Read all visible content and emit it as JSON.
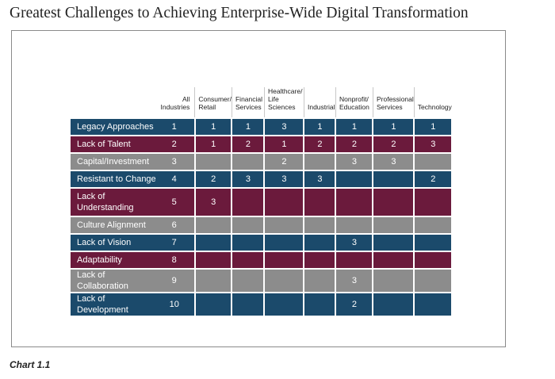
{
  "title": "Greatest Challenges to Achieving Enterprise-Wide Digital Transformation",
  "caption": "Chart 1.1",
  "colors": {
    "blue": "#1b4a6b",
    "maroon": "#6b1a3c",
    "gray": "#8c8c8c"
  },
  "chart_data": {
    "type": "table",
    "columns": [
      "All Industries",
      "Consumer/ Retail",
      "Financial Services",
      "Healthcare/ Life Sciences",
      "Industrial",
      "Nonprofit/ Education",
      "Professional Services",
      "Technology"
    ],
    "rows": [
      {
        "label": "Legacy Approaches",
        "color": "blue",
        "values": [
          "1",
          "1",
          "1",
          "3",
          "1",
          "1",
          "1",
          "1"
        ]
      },
      {
        "label": "Lack of Talent",
        "color": "maroon",
        "values": [
          "2",
          "1",
          "2",
          "1",
          "2",
          "2",
          "2",
          "3"
        ]
      },
      {
        "label": "Capital/Investment",
        "color": "gray",
        "values": [
          "3",
          "",
          "",
          "2",
          "",
          "3",
          "3",
          ""
        ]
      },
      {
        "label": "Resistant to Change",
        "color": "blue",
        "values": [
          "4",
          "2",
          "3",
          "3",
          "3",
          "",
          "",
          "2"
        ]
      },
      {
        "label": "Lack of Understanding",
        "color": "maroon",
        "values": [
          "5",
          "3",
          "",
          "",
          "",
          "",
          "",
          ""
        ]
      },
      {
        "label": "Culture Alignment",
        "color": "gray",
        "values": [
          "6",
          "",
          "",
          "",
          "",
          "",
          "",
          ""
        ]
      },
      {
        "label": "Lack of Vision",
        "color": "blue",
        "values": [
          "7",
          "",
          "",
          "",
          "",
          "3",
          "",
          ""
        ]
      },
      {
        "label": "Adaptability",
        "color": "maroon",
        "values": [
          "8",
          "",
          "",
          "",
          "",
          "",
          "",
          ""
        ]
      },
      {
        "label": "Lack of Collaboration",
        "color": "gray",
        "values": [
          "9",
          "",
          "",
          "",
          "",
          "3",
          "",
          ""
        ]
      },
      {
        "label": "Lack of Development",
        "color": "blue",
        "values": [
          "10",
          "",
          "",
          "",
          "",
          "2",
          "",
          ""
        ]
      }
    ]
  }
}
